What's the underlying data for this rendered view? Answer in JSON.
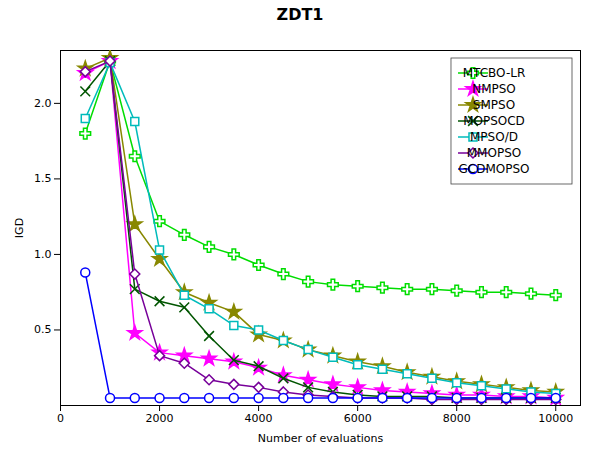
{
  "chart_data": {
    "type": "line",
    "title": "ZDT1",
    "xlabel": "Number of evaluations",
    "ylabel": "IGD",
    "xlim": [
      0,
      10500
    ],
    "ylim": [
      0,
      2.35
    ],
    "xticks": [
      0,
      2000,
      4000,
      6000,
      8000,
      10000
    ],
    "yticks": [
      0.5,
      {
        "value": 1,
        "label": "1.0"
      },
      1.5,
      {
        "value": 2,
        "label": "2.0"
      }
    ],
    "grid": false,
    "legend": "upper right",
    "x": [
      500,
      1000,
      1500,
      2000,
      2500,
      3000,
      3500,
      4000,
      4500,
      5000,
      5500,
      6000,
      6500,
      7000,
      7500,
      8000,
      8500,
      9000,
      9500,
      10000
    ],
    "series": [
      {
        "name": "MTCBO-LR",
        "color": "#00dd00",
        "marker": "plus",
        "values": [
          1.8,
          2.28,
          1.65,
          1.22,
          1.13,
          1.05,
          1.0,
          0.93,
          0.87,
          0.82,
          0.8,
          0.79,
          0.78,
          0.77,
          0.77,
          0.76,
          0.75,
          0.75,
          0.74,
          0.73
        ]
      },
      {
        "name": "NMPSO",
        "color": "#ff00ff",
        "marker": "star",
        "values": [
          2.2,
          2.28,
          0.48,
          0.35,
          0.33,
          0.31,
          0.29,
          0.25,
          0.2,
          0.17,
          0.14,
          0.12,
          0.1,
          0.09,
          0.08,
          0.07,
          0.07,
          0.06,
          0.06,
          0.05
        ]
      },
      {
        "name": "SMPSO",
        "color": "#888800",
        "marker": "star",
        "values": [
          2.23,
          2.3,
          1.2,
          0.97,
          0.75,
          0.68,
          0.62,
          0.47,
          0.43,
          0.37,
          0.33,
          0.29,
          0.26,
          0.22,
          0.19,
          0.16,
          0.14,
          0.12,
          0.1,
          0.09
        ]
      },
      {
        "name": "MOPSOCD",
        "color": "#005500",
        "marker": "x",
        "values": [
          2.08,
          2.28,
          0.77,
          0.69,
          0.65,
          0.46,
          0.3,
          0.26,
          0.18,
          0.12,
          0.09,
          0.07,
          0.06,
          0.06,
          0.06,
          0.05,
          0.05,
          0.05,
          0.05,
          0.05
        ]
      },
      {
        "name": "MPSO/D",
        "color": "#00bbbb",
        "marker": "square",
        "values": [
          1.9,
          2.27,
          1.88,
          1.03,
          0.73,
          0.64,
          0.53,
          0.5,
          0.43,
          0.37,
          0.32,
          0.27,
          0.24,
          0.21,
          0.18,
          0.15,
          0.13,
          0.11,
          0.09,
          0.08
        ]
      },
      {
        "name": "MMOPSO",
        "color": "#770099",
        "marker": "diamond",
        "values": [
          2.21,
          2.28,
          0.87,
          0.33,
          0.28,
          0.17,
          0.14,
          0.12,
          0.09,
          0.07,
          0.06,
          0.05,
          0.05,
          0.05,
          0.04,
          0.04,
          0.04,
          0.04,
          0.04,
          0.04
        ]
      },
      {
        "name": "GCDMOPSO",
        "color": "#0000ff",
        "marker": "circle",
        "values": [
          0.88,
          0.05,
          0.05,
          0.05,
          0.05,
          0.05,
          0.05,
          0.05,
          0.05,
          0.05,
          0.05,
          0.05,
          0.05,
          0.05,
          0.05,
          0.05,
          0.05,
          0.05,
          0.05,
          0.05
        ]
      }
    ]
  }
}
